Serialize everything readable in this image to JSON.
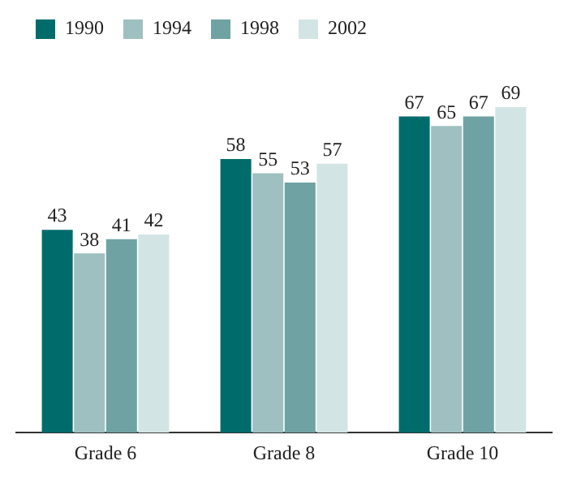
{
  "chart_data": {
    "type": "bar",
    "categories": [
      "Grade 6",
      "Grade 8",
      "Grade 10"
    ],
    "series": [
      {
        "name": "1990",
        "color": "#006b6b",
        "values": [
          43,
          58,
          67
        ]
      },
      {
        "name": "1994",
        "color": "#9fc0c0",
        "values": [
          38,
          55,
          65
        ]
      },
      {
        "name": "1998",
        "color": "#6fa3a3",
        "values": [
          41,
          53,
          67
        ]
      },
      {
        "name": "2002",
        "color": "#d3e4e4",
        "values": [
          42,
          57,
          69
        ]
      }
    ],
    "data_labels": true,
    "legend": "top left",
    "tick_labels": "x",
    "grid": false
  }
}
